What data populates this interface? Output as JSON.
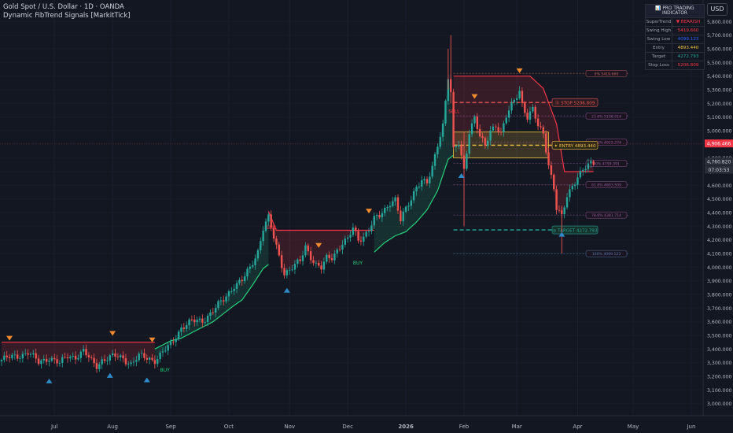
{
  "header": {
    "line1": "Gold Spot / U.S. Dollar · 1D · OANDA",
    "line2": "Dynamic FibTrend Signals [MarkitTick]"
  },
  "currency_button": "USD",
  "info_table": {
    "title": "📊 PRO TRADING INDICATOR",
    "rows": [
      {
        "label": "SuperTrend",
        "value": "▼ BEARISH",
        "color": "#f23645"
      },
      {
        "label": "Swing High",
        "value": "5419.660",
        "color": "#f23645"
      },
      {
        "label": "Swing Low",
        "value": "4099.123",
        "color": "#2962ff"
      },
      {
        "label": "Entry",
        "value": "4893.440",
        "color": "#f0c040"
      },
      {
        "label": "Target",
        "value": "4272.793",
        "color": "#26a69a"
      },
      {
        "label": "Stop Loss",
        "value": "5206.809",
        "color": "#f23645"
      }
    ]
  },
  "x_axis_labels": [
    {
      "text": "Jul",
      "idx": 20,
      "bold": false
    },
    {
      "text": "Aug",
      "idx": 42,
      "bold": false
    },
    {
      "text": "Sep",
      "idx": 64,
      "bold": false
    },
    {
      "text": "Oct",
      "idx": 86,
      "bold": false
    },
    {
      "text": "Nov",
      "idx": 109,
      "bold": false
    },
    {
      "text": "Dec",
      "idx": 131,
      "bold": false
    },
    {
      "text": "2026",
      "idx": 153,
      "bold": true
    },
    {
      "text": "Feb",
      "idx": 175,
      "bold": false
    },
    {
      "text": "Mar",
      "idx": 195,
      "bold": false
    },
    {
      "text": "Apr",
      "idx": 218,
      "bold": false
    },
    {
      "text": "May",
      "idx": 239,
      "bold": false
    },
    {
      "text": "Jun",
      "idx": 261,
      "bold": false
    }
  ],
  "price_badges": [
    {
      "text": "4,906.466",
      "price": 4906.466,
      "bg": "#f23645",
      "fg": "#ffffff"
    },
    {
      "text": "4,760.820",
      "price": 4775,
      "bg": "#2a2e39",
      "fg": "#d1d4dc"
    },
    {
      "text": "07:03:53",
      "price": 4715,
      "bg": "#2a2e39",
      "fg": "#d1d4dc"
    }
  ],
  "signals": {
    "sell": "SELL",
    "buy": "BUY"
  },
  "levels": [
    {
      "text": "Ⓢ STOP 5206.809",
      "price": 5206.809,
      "color": "#ef5350",
      "bg": "#2a1c22",
      "dashed": true
    },
    {
      "text": "✦ ENTRY 4893.440",
      "price": 4893.44,
      "color": "#f0c040",
      "bg": "#2f2a18",
      "dashed": true
    },
    {
      "text": "◎ TARGET 4272.793",
      "price": 4272.793,
      "color": "#26a69a",
      "bg": "#16302a",
      "dashed": true
    }
  ],
  "fib_labels": [
    {
      "text": "0% 5419.660",
      "price": 5419.66,
      "color": "#c0605a"
    },
    {
      "text": "23.6% 5108.014",
      "price": 5108.014,
      "color": "#9c5a9c"
    },
    {
      "text": "38.2% 4915.274",
      "price": 4915.274,
      "color": "#9c5a9c"
    },
    {
      "text": "50% 4759.391",
      "price": 4759.391,
      "color": "#9c5a9c"
    },
    {
      "text": "61.8% 4603.509",
      "price": 4603.509,
      "color": "#9c5a9c"
    },
    {
      "text": "78.6% 4381.714",
      "price": 4381.714,
      "color": "#9c5a9c"
    },
    {
      "text": "100% 4099.123",
      "price": 4099.123,
      "color": "#5a7ab0"
    }
  ],
  "chart_data": {
    "type": "candlestick",
    "instrument": "Gold Spot / U.S. Dollar",
    "timeframe": "1D",
    "y_range": [
      2950,
      5900
    ],
    "y_ticks": [
      3000,
      3100,
      3200,
      3300,
      3400,
      3500,
      3600,
      3700,
      3800,
      3900,
      4000,
      4100,
      4200,
      4300,
      4400,
      4500,
      4600,
      4700,
      4800,
      4900,
      5000,
      5100,
      5200,
      5300,
      5400,
      5500,
      5600,
      5700,
      5800
    ],
    "anchors": [
      [
        0,
        3320
      ],
      [
        6,
        3350
      ],
      [
        10,
        3375
      ],
      [
        14,
        3300
      ],
      [
        18,
        3340
      ],
      [
        22,
        3290
      ],
      [
        25,
        3350
      ],
      [
        28,
        3345
      ],
      [
        31,
        3380
      ],
      [
        34,
        3310
      ],
      [
        36,
        3280
      ],
      [
        38,
        3320
      ],
      [
        40,
        3330
      ],
      [
        43,
        3345
      ],
      [
        46,
        3335
      ],
      [
        49,
        3290
      ],
      [
        52,
        3345
      ],
      [
        55,
        3335
      ],
      [
        58,
        3320
      ],
      [
        60,
        3355
      ],
      [
        64,
        3430
      ],
      [
        68,
        3560
      ],
      [
        72,
        3600
      ],
      [
        76,
        3610
      ],
      [
        80,
        3680
      ],
      [
        84,
        3760
      ],
      [
        88,
        3870
      ],
      [
        91,
        3900
      ],
      [
        94,
        3990
      ],
      [
        97,
        4120
      ],
      [
        99,
        4290
      ],
      [
        101,
        4360
      ],
      [
        103,
        4210
      ],
      [
        105,
        4080
      ],
      [
        107,
        3960
      ],
      [
        109,
        3985
      ],
      [
        111,
        4010
      ],
      [
        113,
        4040
      ],
      [
        115,
        4150
      ],
      [
        117,
        4080
      ],
      [
        119,
        4020
      ],
      [
        121,
        3990
      ],
      [
        123,
        4060
      ],
      [
        125,
        4070
      ],
      [
        127,
        4130
      ],
      [
        129,
        4180
      ],
      [
        131,
        4200
      ],
      [
        133,
        4280
      ],
      [
        135,
        4200
      ],
      [
        137,
        4230
      ],
      [
        139,
        4280
      ],
      [
        141,
        4350
      ],
      [
        143,
        4370
      ],
      [
        145,
        4420
      ],
      [
        147,
        4480
      ],
      [
        149,
        4500
      ],
      [
        151,
        4340
      ],
      [
        153,
        4420
      ],
      [
        155,
        4500
      ],
      [
        157,
        4600
      ],
      [
        159,
        4640
      ],
      [
        161,
        4610
      ],
      [
        163,
        4720
      ],
      [
        165,
        4900
      ],
      [
        167,
        5050
      ],
      [
        169,
        5400
      ],
      [
        170,
        5280
      ],
      [
        171,
        4850
      ],
      [
        173,
        4900
      ],
      [
        175,
        4710
      ],
      [
        177,
        5000
      ],
      [
        179,
        5100
      ],
      [
        181,
        4950
      ],
      [
        183,
        4880
      ],
      [
        185,
        5000
      ],
      [
        187,
        5050
      ],
      [
        189,
        4980
      ],
      [
        191,
        5100
      ],
      [
        193,
        5180
      ],
      [
        195,
        5260
      ],
      [
        196,
        5300
      ],
      [
        197,
        5200
      ],
      [
        199,
        5100
      ],
      [
        201,
        5150
      ],
      [
        203,
        5030
      ],
      [
        205,
        4980
      ],
      [
        207,
        4760
      ],
      [
        209,
        4580
      ],
      [
        210,
        4430
      ],
      [
        212,
        4360
      ],
      [
        214,
        4520
      ],
      [
        216,
        4600
      ],
      [
        218,
        4670
      ],
      [
        220,
        4710
      ],
      [
        222,
        4740
      ],
      [
        224,
        4760
      ]
    ],
    "swing_high_markers": [
      3,
      42,
      57,
      120,
      139,
      179,
      196
    ],
    "swing_low_markers": [
      18,
      41,
      55,
      108,
      174,
      212
    ],
    "supertrend_bull": [
      [
        58,
        3400
      ],
      [
        64,
        3460
      ],
      [
        68,
        3480
      ],
      [
        72,
        3520
      ],
      [
        76,
        3560
      ],
      [
        80,
        3600
      ],
      [
        84,
        3660
      ],
      [
        88,
        3720
      ],
      [
        91,
        3760
      ],
      [
        95,
        3870
      ],
      [
        99,
        3990
      ],
      [
        101,
        4020
      ]
    ],
    "supertrend_bear_1": [
      [
        0,
        3450
      ],
      [
        58,
        3450
      ]
    ],
    "supertrend_bear_2": [
      [
        101,
        4410
      ],
      [
        104,
        4270
      ],
      [
        135,
        4270
      ],
      [
        141,
        4270
      ]
    ],
    "supertrend_bull_2": [
      [
        141,
        4110
      ],
      [
        145,
        4180
      ],
      [
        149,
        4230
      ],
      [
        153,
        4260
      ],
      [
        157,
        4330
      ],
      [
        161,
        4420
      ],
      [
        165,
        4560
      ],
      [
        169,
        4790
      ],
      [
        171,
        4820
      ]
    ],
    "supertrend_bear_3": [
      [
        171,
        5400
      ],
      [
        200,
        5400
      ],
      [
        205,
        5310
      ],
      [
        210,
        5050
      ],
      [
        213,
        4700
      ],
      [
        224,
        4700
      ]
    ]
  }
}
